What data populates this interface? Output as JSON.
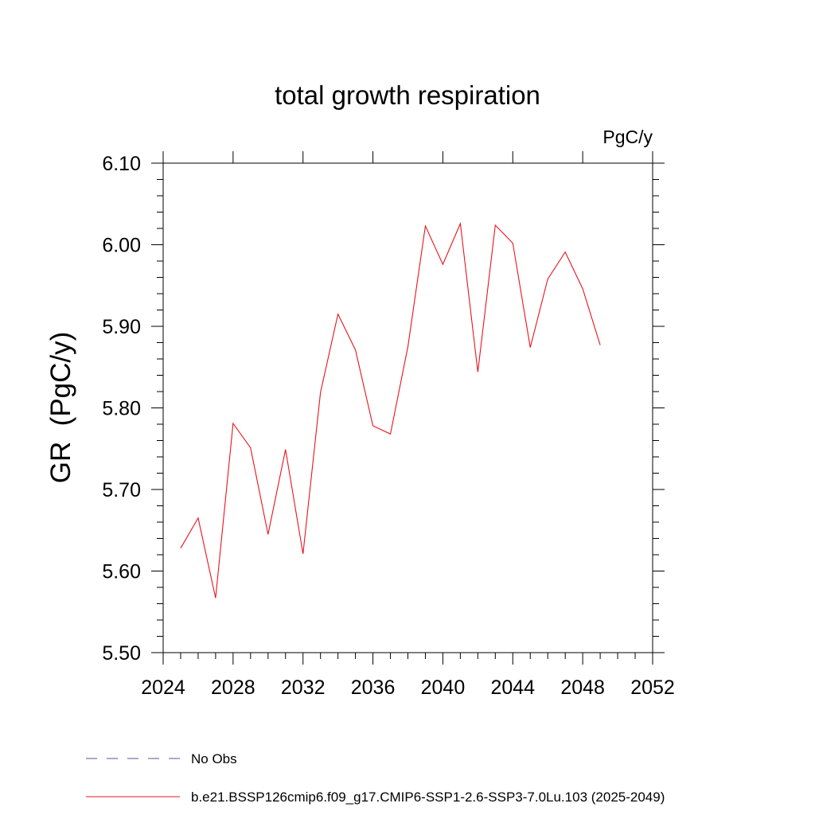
{
  "chart_data": {
    "type": "line",
    "title": "total growth respiration",
    "units": "PgC/y",
    "ylabel": "GR  (PgC/y)",
    "xlabel": "",
    "xlim": [
      2024,
      2052
    ],
    "ylim": [
      5.5,
      6.1
    ],
    "x_ticks": [
      2024,
      2028,
      2032,
      2036,
      2040,
      2044,
      2048,
      2052
    ],
    "x_tick_labels": [
      "2024",
      "2028",
      "2032",
      "2036",
      "2040",
      "2044",
      "2048",
      "2052"
    ],
    "y_ticks": [
      5.5,
      5.6,
      5.7,
      5.8,
      5.9,
      6.0,
      6.1
    ],
    "y_tick_labels": [
      "5.50",
      "5.60",
      "5.70",
      "5.80",
      "5.90",
      "6.00",
      "6.10"
    ],
    "grid": false,
    "legend_position": "bottom",
    "series": [
      {
        "name": "No Obs",
        "color": "#5a4fa0",
        "dash": "dashed",
        "x": [],
        "y": []
      },
      {
        "name": "b.e21.BSSP126cmip6.f09_g17.CMIP6-SSP1-2.6-SSP3-7.0Lu.103 (2025-2049)",
        "color": "#e8141c",
        "dash": "solid",
        "x": [
          2025,
          2026,
          2027,
          2028,
          2029,
          2030,
          2031,
          2032,
          2033,
          2034,
          2035,
          2036,
          2037,
          2038,
          2039,
          2040,
          2041,
          2042,
          2043,
          2044,
          2045,
          2046,
          2047,
          2048,
          2049
        ],
        "y": [
          5.628,
          5.665,
          5.567,
          5.781,
          5.751,
          5.645,
          5.749,
          5.621,
          5.819,
          5.915,
          5.871,
          5.778,
          5.768,
          5.875,
          6.023,
          5.976,
          6.026,
          5.844,
          6.024,
          6.002,
          5.874,
          5.958,
          5.991,
          5.946,
          5.877
        ]
      }
    ]
  }
}
